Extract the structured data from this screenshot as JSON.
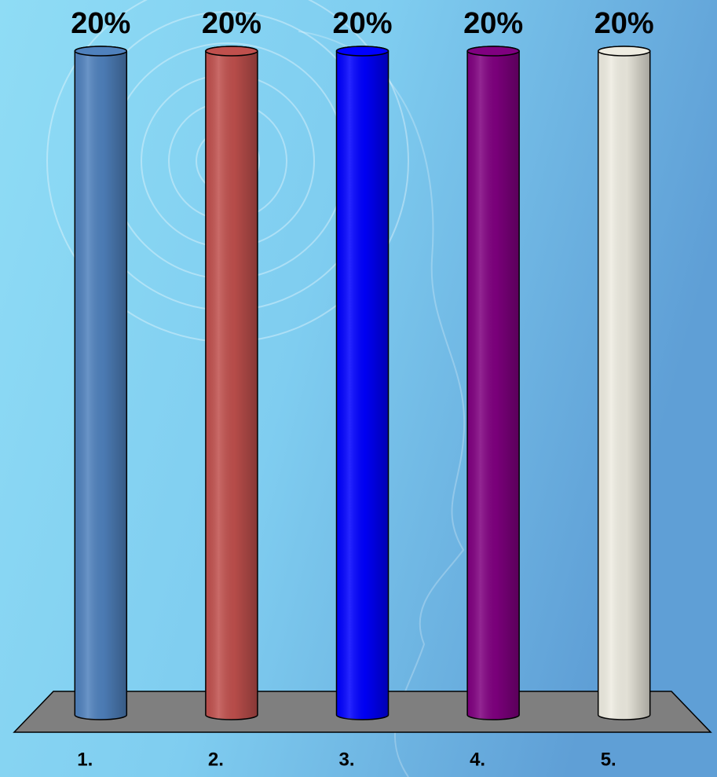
{
  "chart_data": {
    "type": "bar3d",
    "categories": [
      "1.",
      "2.",
      "3.",
      "4.",
      "5."
    ],
    "values": [
      20,
      20,
      20,
      20,
      20
    ],
    "value_labels": [
      "20%",
      "20%",
      "20%",
      "20%",
      "20%"
    ],
    "colors": [
      "#4f81bd",
      "#c0504d",
      "#0000ff",
      "#800080",
      "#eeece1"
    ]
  }
}
